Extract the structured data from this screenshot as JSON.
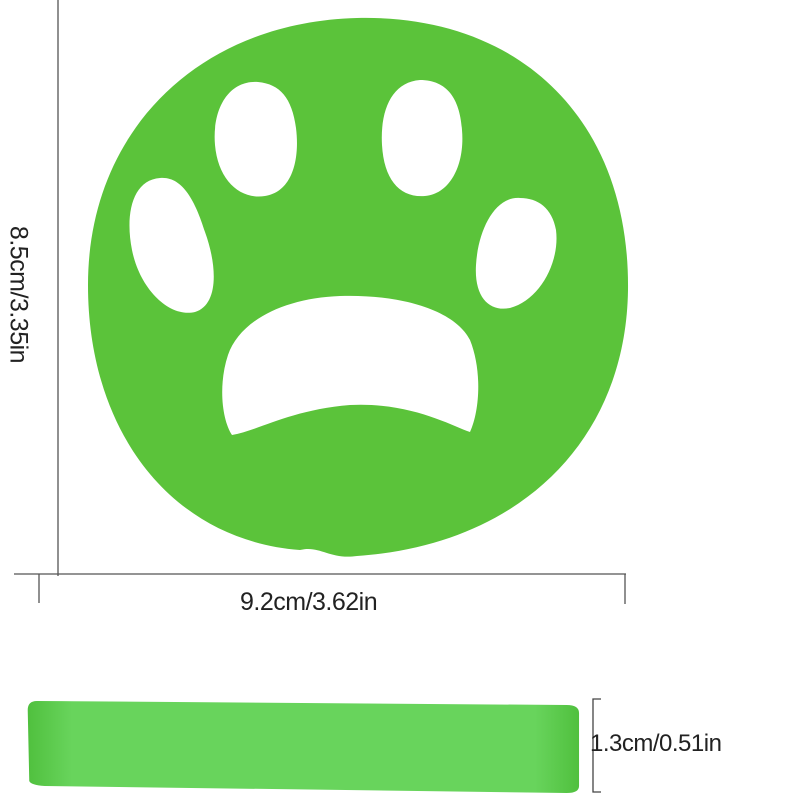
{
  "product": {
    "color": "#5bc33a",
    "side_color": "#68d45a"
  },
  "dimensions": {
    "height_label": "8.5cm/3.35in",
    "width_label": "9.2cm/3.62in",
    "thickness_label": "1.3cm/0.51in"
  }
}
